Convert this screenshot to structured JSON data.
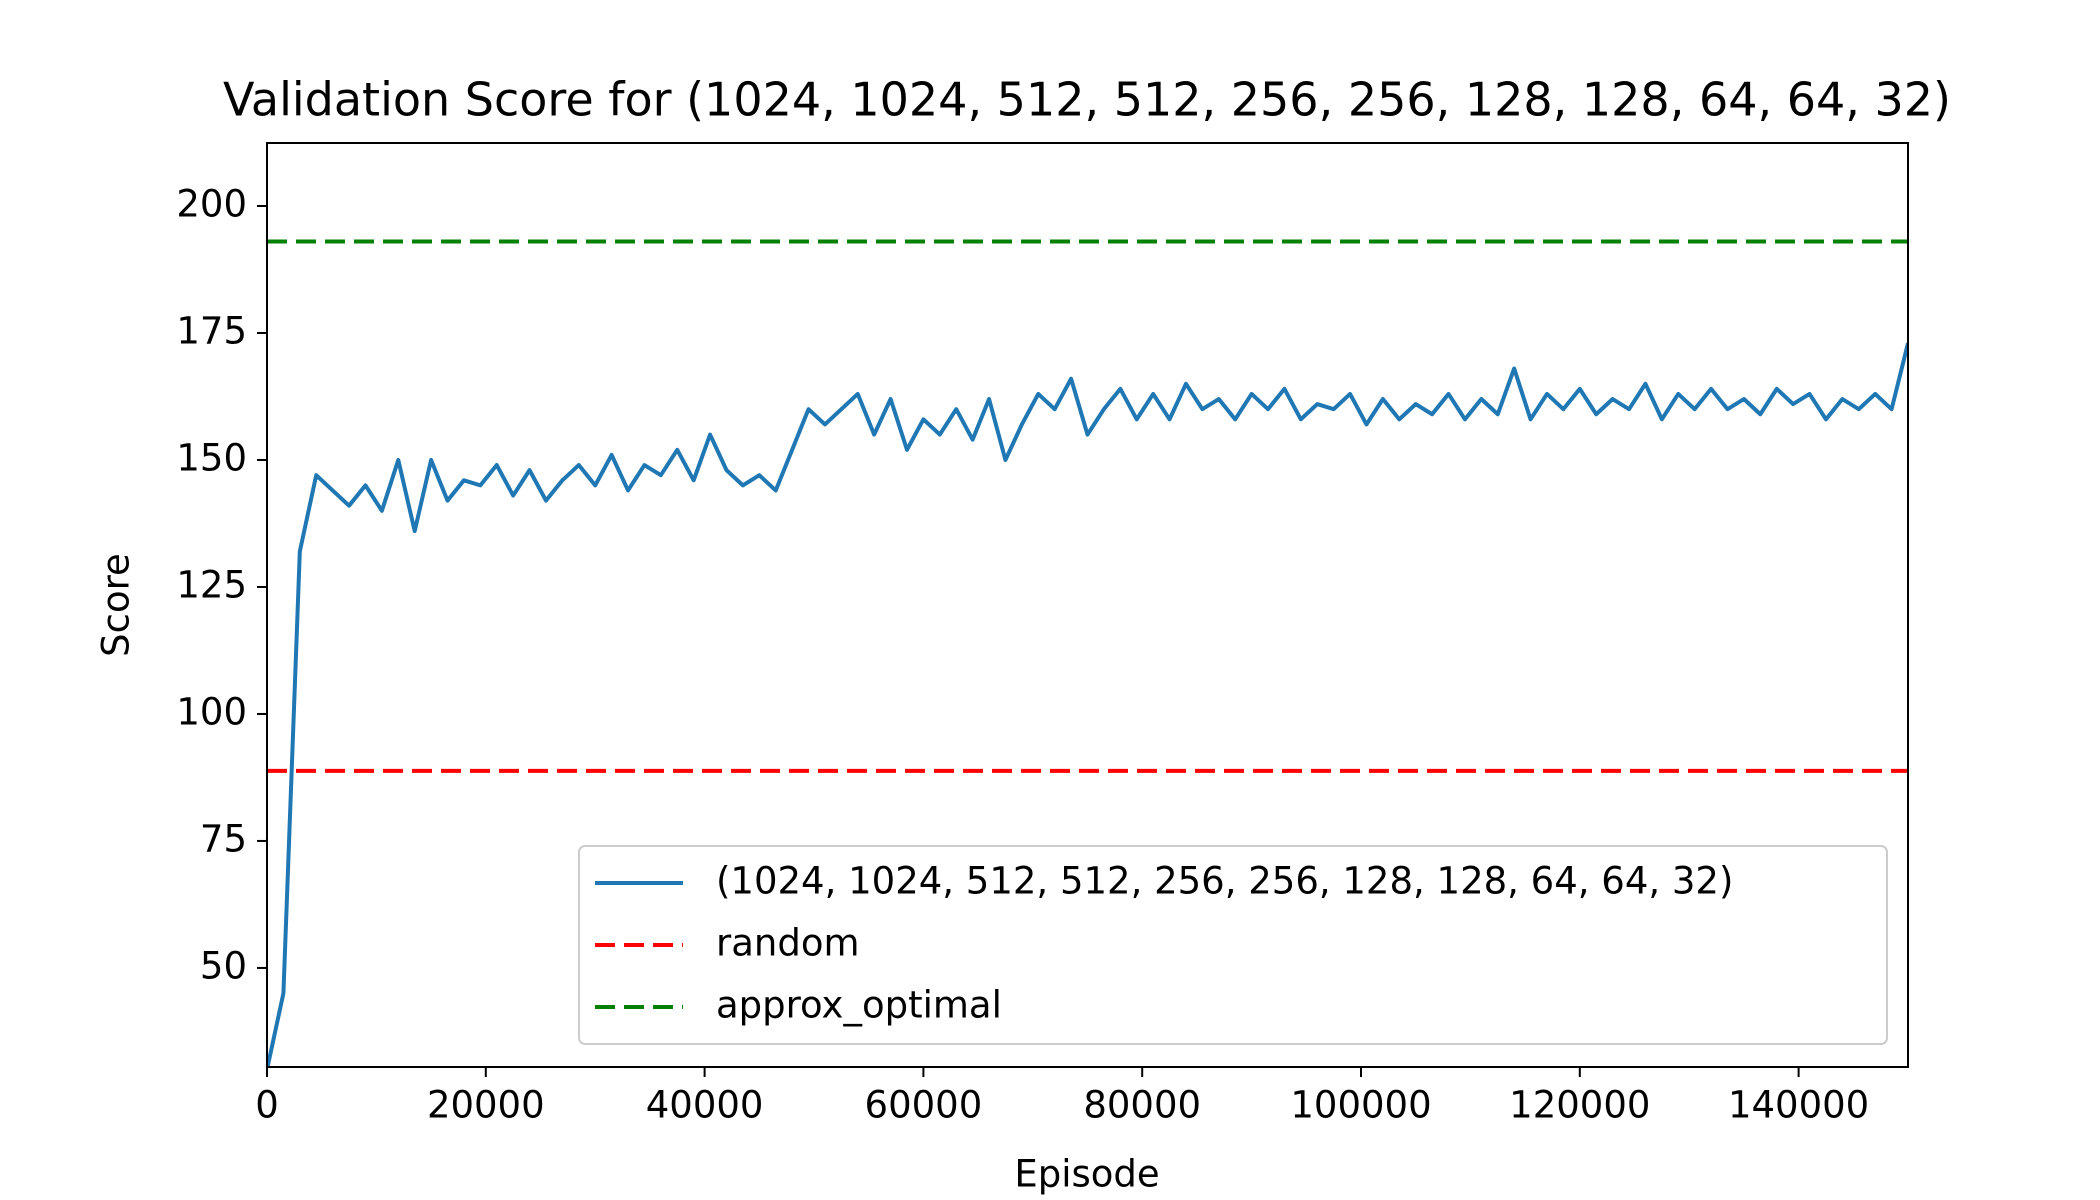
{
  "chart_data": {
    "type": "line",
    "title": "Validation Score for (1024, 1024, 512, 512, 256, 256, 128, 128, 64, 64, 32)",
    "x_label": "Episode",
    "y_label": "Score",
    "x": [
      0,
      1500,
      3000,
      4500,
      6000,
      7500,
      9000,
      10500,
      12000,
      13500,
      15000,
      16500,
      18000,
      19500,
      21000,
      22500,
      24000,
      25500,
      27000,
      28500,
      30000,
      31500,
      33000,
      34500,
      36000,
      37500,
      39000,
      40500,
      42000,
      43500,
      45000,
      46500,
      48000,
      49500,
      51000,
      52500,
      54000,
      55500,
      57000,
      58500,
      60000,
      61500,
      63000,
      64500,
      66000,
      67500,
      69000,
      70500,
      72000,
      73500,
      75000,
      76500,
      78000,
      79500,
      81000,
      82500,
      84000,
      85500,
      87000,
      88500,
      90000,
      91500,
      93000,
      94500,
      96000,
      97500,
      99000,
      100500,
      102000,
      103500,
      105000,
      106500,
      108000,
      109500,
      111000,
      112500,
      114000,
      115500,
      117000,
      118500,
      120000,
      121500,
      123000,
      124500,
      126000,
      127500,
      129000,
      130500,
      132000,
      133500,
      135000,
      136500,
      138000,
      139500,
      141000,
      142500,
      144000,
      145500,
      147000,
      148500,
      150000
    ],
    "series": [
      {
        "name": "(1024, 1024, 512, 512, 256, 256, 128, 128, 64, 64, 32)",
        "color": "#1f77b4",
        "values": [
          30,
          45,
          132,
          147,
          144,
          141,
          145,
          140,
          150,
          136,
          150,
          142,
          146,
          145,
          149,
          143,
          148,
          142,
          146,
          149,
          145,
          151,
          144,
          149,
          147,
          152,
          146,
          155,
          148,
          145,
          147,
          144,
          152,
          160,
          157,
          160,
          163,
          155,
          162,
          152,
          158,
          155,
          160,
          154,
          162,
          150,
          157,
          163,
          160,
          166,
          155,
          160,
          164,
          158,
          163,
          158,
          165,
          160,
          162,
          158,
          163,
          160,
          164,
          158,
          161,
          160,
          163,
          157,
          162,
          158,
          161,
          159,
          163,
          158,
          162,
          159,
          168,
          158,
          163,
          160,
          164,
          159,
          162,
          160,
          165,
          158,
          163,
          160,
          164,
          160,
          162,
          159,
          164,
          161,
          163,
          158,
          162,
          160,
          163,
          160,
          173
        ]
      }
    ],
    "hlines": [
      {
        "name": "random",
        "color": "#ff0000",
        "value": 88.8,
        "style": "dashed"
      },
      {
        "name": "approx_optimal",
        "color": "#008000",
        "value": 193,
        "style": "dashed"
      }
    ],
    "xlim": [
      0,
      150000
    ],
    "ylim": [
      30.5,
      212.4
    ],
    "xticks": [
      0,
      20000,
      40000,
      60000,
      80000,
      100000,
      120000,
      140000
    ],
    "yticks": [
      50,
      75,
      100,
      125,
      150,
      175,
      200
    ],
    "grid": false,
    "legend": "lower right"
  }
}
